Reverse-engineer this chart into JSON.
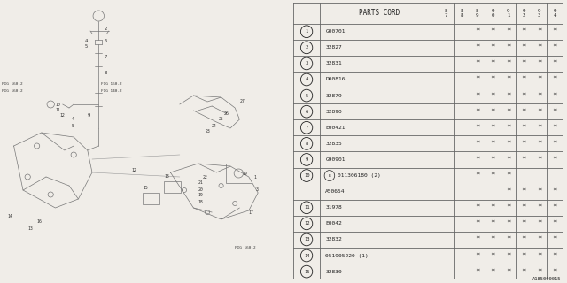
{
  "diagram_id": "A185000015",
  "bg_color": "#f0ede8",
  "table_line_color": "#666666",
  "text_color": "#222222",
  "table": {
    "years": [
      "8\n7",
      "8\n8",
      "8\n9",
      "9\n0",
      "9\n1",
      "9\n2",
      "9\n3",
      "9\n4"
    ],
    "rows": [
      {
        "num": "1",
        "code": "G00701",
        "marks": [
          0,
          0,
          1,
          1,
          1,
          1,
          1,
          1
        ],
        "is_10_top": false,
        "is_10_bot": false,
        "show_num": true,
        "special_b": false
      },
      {
        "num": "2",
        "code": "32827",
        "marks": [
          0,
          0,
          1,
          1,
          1,
          1,
          1,
          1
        ],
        "is_10_top": false,
        "is_10_bot": false,
        "show_num": true,
        "special_b": false
      },
      {
        "num": "3",
        "code": "32831",
        "marks": [
          0,
          0,
          1,
          1,
          1,
          1,
          1,
          1
        ],
        "is_10_top": false,
        "is_10_bot": false,
        "show_num": true,
        "special_b": false
      },
      {
        "num": "4",
        "code": "D00816",
        "marks": [
          0,
          0,
          1,
          1,
          1,
          1,
          1,
          1
        ],
        "is_10_top": false,
        "is_10_bot": false,
        "show_num": true,
        "special_b": false
      },
      {
        "num": "5",
        "code": "32879",
        "marks": [
          0,
          0,
          1,
          1,
          1,
          1,
          1,
          1
        ],
        "is_10_top": false,
        "is_10_bot": false,
        "show_num": true,
        "special_b": false
      },
      {
        "num": "6",
        "code": "32890",
        "marks": [
          0,
          0,
          1,
          1,
          1,
          1,
          1,
          1
        ],
        "is_10_top": false,
        "is_10_bot": false,
        "show_num": true,
        "special_b": false
      },
      {
        "num": "7",
        "code": "E00421",
        "marks": [
          0,
          0,
          1,
          1,
          1,
          1,
          1,
          1
        ],
        "is_10_top": false,
        "is_10_bot": false,
        "show_num": true,
        "special_b": false
      },
      {
        "num": "8",
        "code": "32835",
        "marks": [
          0,
          0,
          1,
          1,
          1,
          1,
          1,
          1
        ],
        "is_10_top": false,
        "is_10_bot": false,
        "show_num": true,
        "special_b": false
      },
      {
        "num": "9",
        "code": "G90901",
        "marks": [
          0,
          0,
          1,
          1,
          1,
          1,
          1,
          1
        ],
        "is_10_top": false,
        "is_10_bot": false,
        "show_num": true,
        "special_b": false
      },
      {
        "num": "10",
        "code": "011306180 (2)",
        "marks": [
          0,
          0,
          1,
          1,
          1,
          0,
          0,
          0
        ],
        "is_10_top": true,
        "is_10_bot": false,
        "show_num": true,
        "special_b": true
      },
      {
        "num": "10",
        "code": "A50654",
        "marks": [
          0,
          0,
          0,
          0,
          1,
          1,
          1,
          1
        ],
        "is_10_top": false,
        "is_10_bot": true,
        "show_num": false,
        "special_b": false
      },
      {
        "num": "11",
        "code": "31978",
        "marks": [
          0,
          0,
          1,
          1,
          1,
          1,
          1,
          1
        ],
        "is_10_top": false,
        "is_10_bot": false,
        "show_num": true,
        "special_b": false
      },
      {
        "num": "12",
        "code": "E0042",
        "marks": [
          0,
          0,
          1,
          1,
          1,
          1,
          1,
          1
        ],
        "is_10_top": false,
        "is_10_bot": false,
        "show_num": true,
        "special_b": false
      },
      {
        "num": "13",
        "code": "32832",
        "marks": [
          0,
          0,
          1,
          1,
          1,
          1,
          1,
          1
        ],
        "is_10_top": false,
        "is_10_bot": false,
        "show_num": true,
        "special_b": false
      },
      {
        "num": "14",
        "code": "051905220 (1)",
        "marks": [
          0,
          0,
          1,
          1,
          1,
          1,
          1,
          1
        ],
        "is_10_top": false,
        "is_10_bot": false,
        "show_num": true,
        "special_b": false
      },
      {
        "num": "15",
        "code": "32830",
        "marks": [
          0,
          0,
          1,
          1,
          1,
          1,
          1,
          1
        ],
        "is_10_top": false,
        "is_10_bot": false,
        "show_num": true,
        "special_b": false
      }
    ]
  },
  "sketch": {
    "lc": "#777777",
    "lw": 0.5,
    "label_fs": 4.0,
    "label_color": "#333333"
  }
}
